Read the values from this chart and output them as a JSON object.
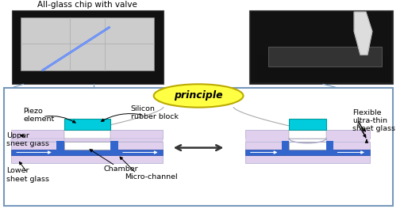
{
  "bg_color": "#ffffff",
  "border_color": "#7799bb",
  "title_text": "All-glass chip with valve",
  "principle_text": "principle",
  "principle_ellipse_color": "#ffff44",
  "principle_ellipse_edge": "#bbaa00",
  "lavender": "#e0d0ee",
  "blue_ch": "#3366cc",
  "piezo_color": "#00ccdd",
  "white": "#ffffff",
  "labels": {
    "piezo": "Piezo\nelement",
    "silicon": "Silicon\nrubber block",
    "upper": "Upper\nsheet glass",
    "lower": "Lower\nsheet glass",
    "chamber": "Chamber",
    "microchannel": "Micro-channel",
    "flexible": "Flexible\nultra-thin\nsheet glass"
  }
}
